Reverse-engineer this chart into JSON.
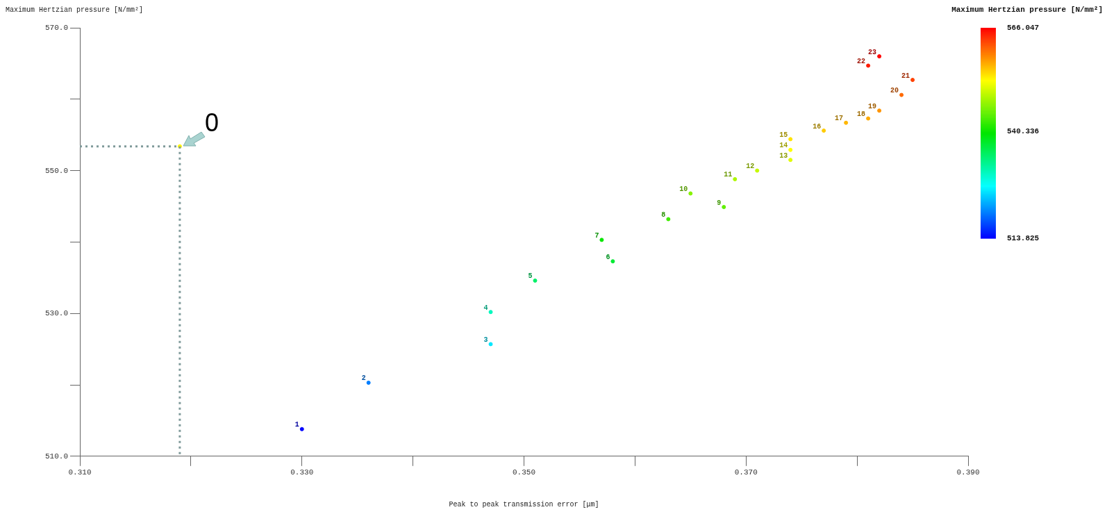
{
  "chart_data": {
    "type": "scatter",
    "xlabel": "Peak to peak transmission error [μm]",
    "ylabel": "Maximum Hertzian pressure [N/mm²]",
    "clabel": "Maximum Hertzian pressure [N/mm²]",
    "xlim": [
      0.31,
      0.39
    ],
    "xticks": [
      {
        "value": 0.31,
        "label": "0.310"
      },
      {
        "value": 0.32,
        "label": null
      },
      {
        "value": 0.33,
        "label": "0.330"
      },
      {
        "value": 0.34,
        "label": null
      },
      {
        "value": 0.35,
        "label": "0.350"
      },
      {
        "value": 0.36,
        "label": null
      },
      {
        "value": 0.37,
        "label": "0.370"
      },
      {
        "value": 0.38,
        "label": null
      },
      {
        "value": 0.39,
        "label": "0.390"
      }
    ],
    "ylim": [
      510,
      570
    ],
    "yticks": [
      {
        "value": 510,
        "label": "510.0"
      },
      {
        "value": 520,
        "label": null
      },
      {
        "value": 530,
        "label": "530.0"
      },
      {
        "value": 540,
        "label": null
      },
      {
        "value": 550,
        "label": "550.0"
      },
      {
        "value": 560,
        "label": null
      },
      {
        "value": 570,
        "label": "570.0"
      }
    ],
    "clim": [
      513.825,
      566.047
    ],
    "cticks": [
      513.825,
      540.336,
      566.047
    ],
    "grid": false,
    "legend": false,
    "annotations": [
      {
        "text": "0",
        "x": 0.319,
        "y": 553.4
      },
      {
        "text": "1",
        "x": 0.33,
        "y": 513.8
      },
      {
        "text": "2",
        "x": 0.336,
        "y": 520.3
      },
      {
        "text": "3",
        "x": 0.347,
        "y": 525.7
      },
      {
        "text": "4",
        "x": 0.347,
        "y": 530.2
      },
      {
        "text": "5",
        "x": 0.351,
        "y": 534.6
      },
      {
        "text": "6",
        "x": 0.358,
        "y": 537.3
      },
      {
        "text": "7",
        "x": 0.357,
        "y": 540.3
      },
      {
        "text": "8",
        "x": 0.363,
        "y": 543.2
      },
      {
        "text": "9",
        "x": 0.368,
        "y": 544.9
      },
      {
        "text": "10",
        "x": 0.365,
        "y": 546.8
      },
      {
        "text": "11",
        "x": 0.369,
        "y": 548.8
      },
      {
        "text": "12",
        "x": 0.371,
        "y": 550.0
      },
      {
        "text": "13",
        "x": 0.374,
        "y": 551.5
      },
      {
        "text": "14",
        "x": 0.374,
        "y": 552.9
      },
      {
        "text": "15",
        "x": 0.374,
        "y": 554.4
      },
      {
        "text": "16",
        "x": 0.377,
        "y": 555.6
      },
      {
        "text": "17",
        "x": 0.379,
        "y": 556.7
      },
      {
        "text": "18",
        "x": 0.381,
        "y": 557.3
      },
      {
        "text": "19",
        "x": 0.382,
        "y": 558.4
      },
      {
        "text": "20",
        "x": 0.384,
        "y": 560.6
      },
      {
        "text": "21",
        "x": 0.385,
        "y": 562.7
      },
      {
        "text": "22",
        "x": 0.381,
        "y": 564.7
      },
      {
        "text": "23",
        "x": 0.382,
        "y": 566.0
      }
    ],
    "series": [
      {
        "type": "line",
        "color": "#7f9a9a",
        "line_style": "dotted",
        "marker": "none",
        "x": [
          0.31,
          0.319,
          0.319
        ],
        "values": [
          553.4,
          553.4,
          510
        ]
      },
      {
        "type": "scatter",
        "marker": "circle",
        "x": [
          0.319
        ],
        "values": [
          553.4
        ],
        "cvalues": [
          553.4
        ],
        "colors": [
          "#fff700"
        ]
      },
      {
        "type": "scatter",
        "marker": "circle",
        "colors": [
          "#0002ff",
          "#007eff",
          "#00e8ff",
          "#00f9be",
          "#00f068",
          "#00eb34",
          "#07e700",
          "#40ec00",
          "#61f000",
          "#86f300",
          "#adf700",
          "#c5f900",
          "#e2fc00",
          "#fdff00",
          "#ffe300",
          "#ffcc00",
          "#ffb600",
          "#ffab00",
          "#ff9500",
          "#ff6a00",
          "#ff4100",
          "#ff1a00",
          "#ff0100"
        ],
        "x": [
          0.33,
          0.336,
          0.347,
          0.347,
          0.351,
          0.358,
          0.357,
          0.363,
          0.368,
          0.365,
          0.369,
          0.371,
          0.374,
          0.374,
          0.374,
          0.377,
          0.379,
          0.381,
          0.382,
          0.384,
          0.385,
          0.381,
          0.382
        ],
        "values": [
          513.8,
          520.3,
          525.7,
          530.2,
          534.6,
          537.3,
          540.3,
          543.2,
          544.9,
          546.8,
          548.8,
          550.0,
          551.5,
          552.9,
          554.4,
          555.6,
          556.7,
          557.3,
          558.4,
          560.6,
          562.7,
          564.7,
          566.0
        ],
        "cvalues": [
          513.9,
          520.3,
          525.7,
          530.2,
          534.6,
          537.3,
          540.3,
          543.2,
          544.9,
          546.8,
          548.8,
          550.0,
          551.5,
          552.9,
          554.4,
          555.6,
          556.7,
          557.3,
          558.4,
          560.6,
          562.7,
          564.7,
          566.0
        ]
      }
    ]
  }
}
